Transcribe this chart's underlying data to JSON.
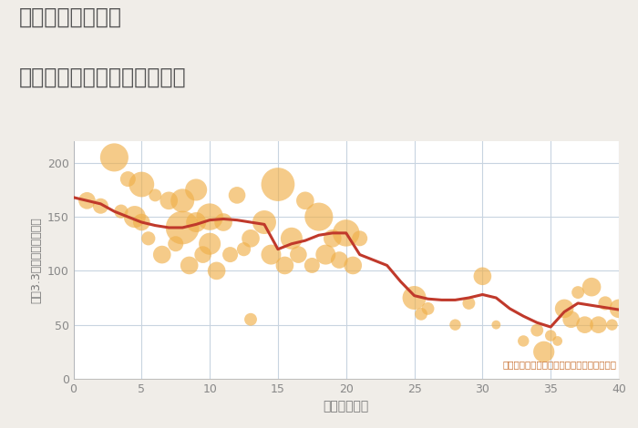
{
  "title_line1": "福岡県春日原駅の",
  "title_line2": "築年数別中古マンション価格",
  "xlabel": "築年数（年）",
  "ylabel": "坪（3.3㎡）単価（万円）",
  "annotation": "円の大きさは、取引のあった物件面積を示す",
  "bg_color": "#f0ede8",
  "plot_bg_color": "#ffffff",
  "grid_color": "#c8d4e0",
  "line_color": "#c0392b",
  "scatter_color": "#f0b04a",
  "scatter_alpha": 0.65,
  "xlim": [
    0,
    40
  ],
  "ylim": [
    0,
    220
  ],
  "xticks": [
    0,
    5,
    10,
    15,
    20,
    25,
    30,
    35,
    40
  ],
  "yticks": [
    0,
    50,
    100,
    150,
    200
  ],
  "scatter_x": [
    1,
    2,
    3,
    3.5,
    4,
    4.5,
    5,
    5,
    5.5,
    6,
    6.5,
    7,
    7.5,
    8,
    8,
    8.5,
    9,
    9,
    9.5,
    10,
    10,
    10.5,
    11,
    11.5,
    12,
    12.5,
    13,
    13,
    14,
    14.5,
    15,
    15.5,
    16,
    16.5,
    17,
    17.5,
    18,
    18.5,
    19,
    19.5,
    20,
    20.5,
    21,
    25,
    25.5,
    26,
    28,
    29,
    30,
    31,
    33,
    34,
    34.5,
    35,
    35.5,
    36,
    36.5,
    37,
    37.5,
    38,
    38.5,
    39,
    39.5,
    40,
    40.5
  ],
  "scatter_y": [
    165,
    160,
    205,
    155,
    185,
    150,
    180,
    145,
    130,
    170,
    115,
    165,
    125,
    140,
    165,
    105,
    175,
    145,
    115,
    150,
    125,
    100,
    145,
    115,
    170,
    120,
    130,
    55,
    145,
    115,
    180,
    105,
    130,
    115,
    165,
    105,
    150,
    115,
    130,
    110,
    135,
    105,
    130,
    75,
    60,
    65,
    50,
    70,
    95,
    50,
    35,
    45,
    25,
    40,
    35,
    65,
    55,
    80,
    50,
    85,
    50,
    70,
    50,
    65,
    55
  ],
  "scatter_size": [
    180,
    150,
    500,
    120,
    150,
    300,
    400,
    180,
    120,
    100,
    200,
    200,
    150,
    700,
    350,
    200,
    300,
    250,
    180,
    450,
    300,
    200,
    200,
    150,
    180,
    120,
    200,
    100,
    350,
    250,
    700,
    200,
    300,
    180,
    200,
    150,
    500,
    250,
    200,
    180,
    450,
    200,
    150,
    350,
    100,
    100,
    80,
    100,
    200,
    50,
    80,
    100,
    280,
    80,
    60,
    220,
    180,
    100,
    180,
    220,
    180,
    120,
    80,
    220,
    120
  ],
  "line_x": [
    0,
    1,
    2,
    3,
    4,
    5,
    6,
    7,
    8,
    9,
    10,
    11,
    12,
    13,
    14,
    15,
    16,
    17,
    18,
    19,
    20,
    21,
    22,
    23,
    24,
    25,
    26,
    27,
    28,
    29,
    30,
    31,
    32,
    33,
    34,
    35,
    36,
    37,
    38,
    39,
    40
  ],
  "line_y": [
    168,
    165,
    162,
    155,
    150,
    145,
    142,
    140,
    140,
    143,
    147,
    148,
    147,
    145,
    143,
    120,
    125,
    128,
    133,
    135,
    135,
    115,
    110,
    105,
    90,
    77,
    74,
    73,
    73,
    75,
    78,
    75,
    65,
    58,
    52,
    48,
    62,
    70,
    68,
    66,
    64
  ],
  "title_color": "#555555",
  "label_color": "#777777",
  "annotation_color": "#c87030",
  "tick_color": "#888888"
}
